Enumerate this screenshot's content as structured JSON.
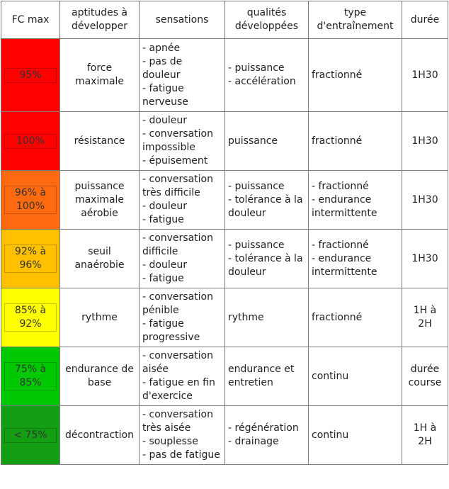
{
  "headers": {
    "fc": "FC max",
    "aptitudes": "aptitudes à développer",
    "sensations": "sensations",
    "qualites": "qualités développées",
    "type": "type d'entraînement",
    "duree": "durée"
  },
  "rows": [
    {
      "fc": "95%",
      "color": "#ff0000",
      "aptitude": "force maximale",
      "sensations": [
        "- apnée",
        "- pas de douleur",
        "- fatigue nerveuse"
      ],
      "qualites": [
        "- puissance",
        "- accélération"
      ],
      "type": [
        "fractionné"
      ],
      "duree": "1H30"
    },
    {
      "fc": "100%",
      "color": "#ff0000",
      "aptitude": "résistance",
      "sensations": [
        "- douleur",
        "-  conversation impossible",
        "- épuisement"
      ],
      "qualites": [
        "puissance"
      ],
      "type": [
        "fractionné"
      ],
      "duree": "1H30"
    },
    {
      "fc": "96% à 100%",
      "color": "#ff6a10",
      "aptitude": "puissance maximale aérobie",
      "sensations": [
        "- conversation très difficile",
        "- douleur",
        "- fatigue"
      ],
      "qualites": [
        "- puissance",
        "- tolérance à la douleur"
      ],
      "type": [
        "- fractionné",
        "- endurance intermittente"
      ],
      "duree": "1H30"
    },
    {
      "fc": "92% à 96%",
      "color": "#ffc000",
      "aptitude": "seuil anaérobie",
      "sensations": [
        "- conversation difficile",
        "- douleur",
        "- fatigue"
      ],
      "qualites": [
        "- puissance",
        "- tolérance à la douleur"
      ],
      "type": [
        "- fractionné",
        "- endurance intermittente"
      ],
      "duree": "1H30"
    },
    {
      "fc": "85% à 92%",
      "color": "#ffff00",
      "aptitude": "rythme",
      "sensations": [
        "- conversation pénible",
        "- fatigue progressive"
      ],
      "qualites": [
        "rythme"
      ],
      "type": [
        "fractionné"
      ],
      "duree": "1H à 2H"
    },
    {
      "fc": "75% à 85%",
      "color": "#00c800",
      "aptitude": "endurance de base",
      "sensations": [
        "- conversation aisée",
        "- fatigue en fin d'exercice"
      ],
      "qualites": [
        "endurance et entretien"
      ],
      "type": [
        "continu"
      ],
      "duree": "durée course"
    },
    {
      "fc": "< 75%",
      "color": "#149e14",
      "aptitude": "décontraction",
      "sensations": [
        "- conversation très aisée",
        "- souplesse",
        "- pas de fatigue"
      ],
      "qualites": [
        "- régénération",
        "- drainage"
      ],
      "type": [
        "continu"
      ],
      "duree": "1H à 2H"
    }
  ]
}
